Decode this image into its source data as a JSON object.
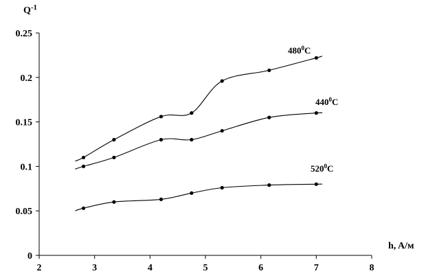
{
  "chart_data": {
    "type": "line",
    "title": "",
    "ylabel_main": "Q",
    "ylabel_exponent": "-1",
    "xlabel": "h, A/м",
    "xlim": [
      2,
      8
    ],
    "ylim": [
      0,
      0.25
    ],
    "x_ticks": [
      2,
      3,
      4,
      5,
      6,
      7,
      8
    ],
    "x_tick_labels": [
      "2",
      "3",
      "4",
      "5",
      "6",
      "7",
      "8"
    ],
    "y_ticks": [
      0,
      0.05,
      0.1,
      0.15,
      0.2,
      0.25
    ],
    "y_tick_labels": [
      "0",
      "0.05",
      "0.1",
      "0.15",
      "0.2",
      "0.25"
    ],
    "grid": false,
    "series": [
      {
        "label_main": "480",
        "label_sup": "0",
        "label_unit": "C",
        "x": [
          2.8,
          3.35,
          4.2,
          4.75,
          5.3,
          6.15,
          7.0
        ],
        "y": [
          0.11,
          0.13,
          0.156,
          0.16,
          0.196,
          0.208,
          0.222
        ],
        "line_start": [
          2.65,
          0.106
        ],
        "line_end": [
          7.1,
          0.224
        ]
      },
      {
        "label_main": "440",
        "label_sup": "0",
        "label_unit": "C",
        "x": [
          2.8,
          3.35,
          4.2,
          4.75,
          5.3,
          6.15,
          7.0
        ],
        "y": [
          0.1,
          0.11,
          0.13,
          0.13,
          0.14,
          0.155,
          0.16
        ],
        "line_start": [
          2.65,
          0.097
        ],
        "line_end": [
          7.1,
          0.16
        ]
      },
      {
        "label_main": "520",
        "label_sup": "0",
        "label_unit": "C",
        "x": [
          2.8,
          3.35,
          4.2,
          4.75,
          5.3,
          6.15,
          7.0
        ],
        "y": [
          0.053,
          0.06,
          0.063,
          0.07,
          0.076,
          0.079,
          0.08
        ],
        "line_start": [
          2.65,
          0.05
        ],
        "line_end": [
          7.1,
          0.08
        ]
      }
    ]
  }
}
